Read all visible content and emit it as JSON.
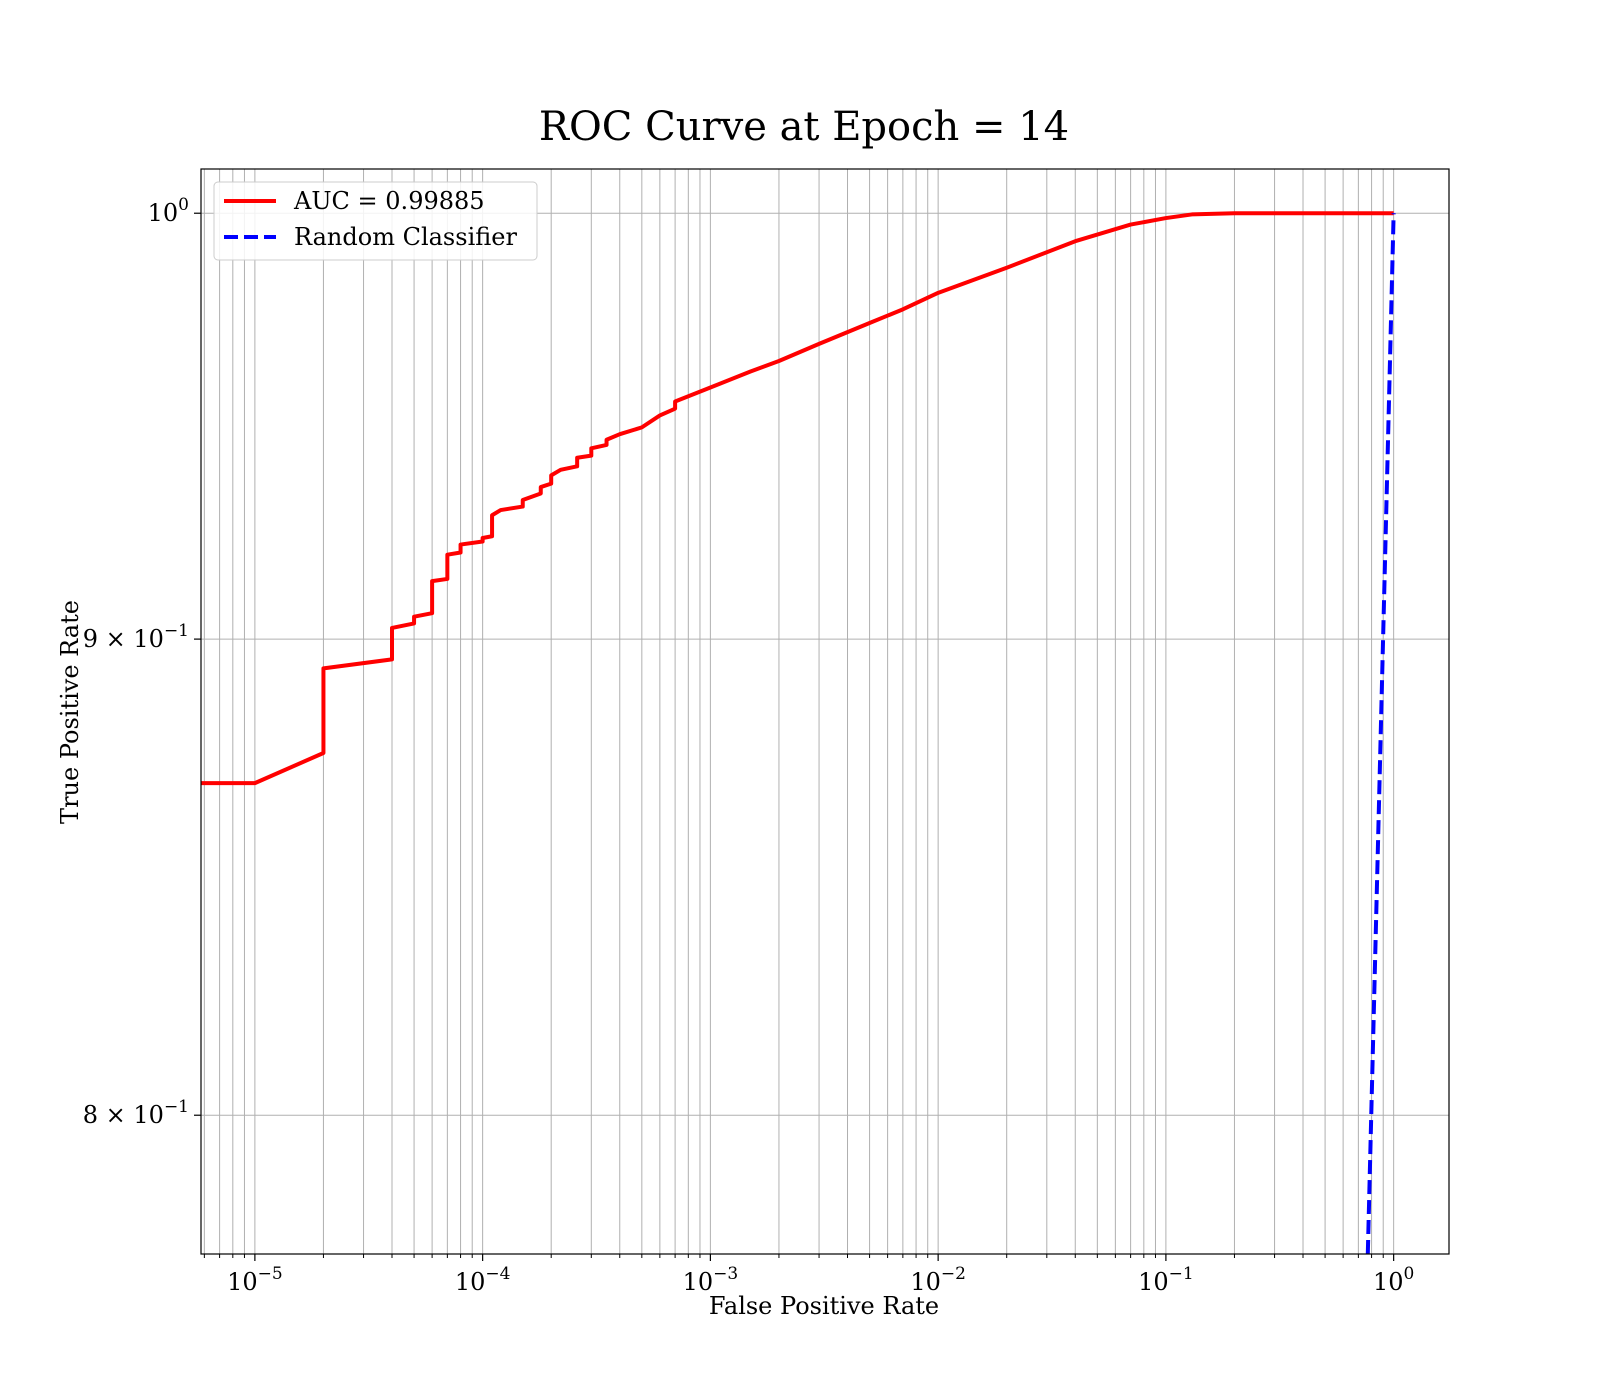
{
  "chart_data": {
    "type": "line",
    "title": "ROC Curve at Epoch = 14",
    "xlabel": "False Positive Rate",
    "ylabel": "True Positive Rate",
    "xscale": "log",
    "yscale": "log",
    "xlim": [
      5.8e-06,
      1.75
    ],
    "ylim": [
      0.773,
      1.011
    ],
    "grid": "both-major-and-minor",
    "legend_position": "upper-left",
    "x_ticks": [
      {
        "value": 1e-05,
        "base": "10",
        "exp": "−5"
      },
      {
        "value": 0.0001,
        "base": "10",
        "exp": "−4"
      },
      {
        "value": 0.001,
        "base": "10",
        "exp": "−3"
      },
      {
        "value": 0.01,
        "base": "10",
        "exp": "−2"
      },
      {
        "value": 0.1,
        "base": "10",
        "exp": "−1"
      },
      {
        "value": 1,
        "base": "10",
        "exp": "0"
      }
    ],
    "y_ticks": [
      {
        "value": 1.0,
        "base": "10",
        "exp": "0"
      },
      {
        "value": 0.9,
        "base": "9 × 10",
        "exp": "−1"
      },
      {
        "value": 0.8,
        "base": "8 × 10",
        "exp": "−1"
      }
    ],
    "series": [
      {
        "name": "AUC = 0.99885",
        "color": "#ff0000",
        "style": "solid",
        "points": [
          [
            5.8e-06,
            0.8685
          ],
          [
            1e-05,
            0.8685
          ],
          [
            2e-05,
            0.875
          ],
          [
            2e-05,
            0.8935
          ],
          [
            4e-05,
            0.8955
          ],
          [
            4e-05,
            0.9025
          ],
          [
            5e-05,
            0.9035
          ],
          [
            5e-05,
            0.905
          ],
          [
            6e-05,
            0.9058
          ],
          [
            6e-05,
            0.913
          ],
          [
            7e-05,
            0.9135
          ],
          [
            7e-05,
            0.919
          ],
          [
            8e-05,
            0.9195
          ],
          [
            8e-05,
            0.9213
          ],
          [
            0.0001,
            0.922
          ],
          [
            0.0001,
            0.9228
          ],
          [
            0.00011,
            0.9232
          ],
          [
            0.00011,
            0.928
          ],
          [
            0.00012,
            0.9292
          ],
          [
            0.00015,
            0.93
          ],
          [
            0.00015,
            0.9315
          ],
          [
            0.00018,
            0.933
          ],
          [
            0.00018,
            0.9345
          ],
          [
            0.0002,
            0.9353
          ],
          [
            0.0002,
            0.9372
          ],
          [
            0.00022,
            0.9385
          ],
          [
            0.00026,
            0.9393
          ],
          [
            0.00026,
            0.9413
          ],
          [
            0.0003,
            0.9418
          ],
          [
            0.0003,
            0.9435
          ],
          [
            0.00035,
            0.9443
          ],
          [
            0.00035,
            0.9455
          ],
          [
            0.0004,
            0.9468
          ],
          [
            0.0005,
            0.9484
          ],
          [
            0.0006,
            0.9512
          ],
          [
            0.0007,
            0.9528
          ],
          [
            0.0007,
            0.9545
          ],
          [
            0.001,
            0.9578
          ],
          [
            0.0015,
            0.9616
          ],
          [
            0.002,
            0.9641
          ],
          [
            0.003,
            0.9682
          ],
          [
            0.005,
            0.9732
          ],
          [
            0.007,
            0.9765
          ],
          [
            0.01,
            0.9805
          ],
          [
            0.02,
            0.9866
          ],
          [
            0.04,
            0.9931
          ],
          [
            0.07,
            0.9972
          ],
          [
            0.1,
            0.9988
          ],
          [
            0.13,
            0.9997
          ],
          [
            0.2,
            1.0
          ],
          [
            1.0,
            1.0
          ]
        ]
      },
      {
        "name": "Random Classifier",
        "color": "#0000ff",
        "style": "dashed",
        "points": [
          [
            0.77,
            0.773
          ],
          [
            1.0,
            1.0
          ]
        ]
      }
    ]
  }
}
